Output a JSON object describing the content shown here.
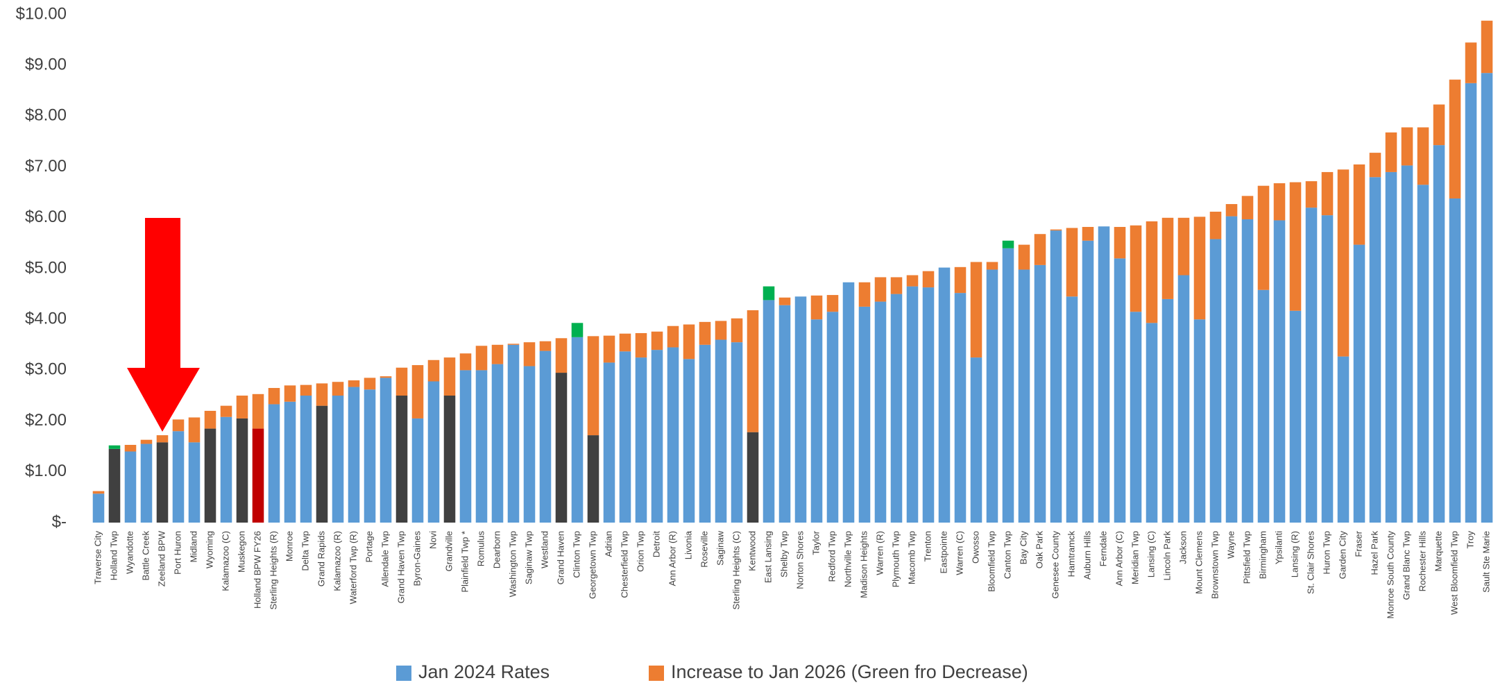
{
  "chart_data": {
    "type": "stacked_bar",
    "categories": [
      "Traverse City",
      "Holland Twp",
      "Wyandotte",
      "Battle Creek",
      "Zeeland BPW",
      "Port Huron",
      "Midland",
      "Wyoming",
      "Kalamazoo (C)",
      "Muskegon",
      "Holland BPW FY26",
      "Sterling Heights (R)",
      "Monroe",
      "Delta Twp",
      "Grand Rapids",
      "Kalamazoo (R)",
      "Waterford Twp (R)",
      "Portage",
      "Allendale Twp",
      "Grand Haven Twp",
      "Byron-Gaines",
      "Novi",
      "Grandville",
      "Plainfield Twp *",
      "Romulus",
      "Dearborn",
      "Washington Twp",
      "Saginaw Twp",
      "Westland",
      "Grand Haven",
      "Clinton Twp",
      "Georgetown Twp",
      "Adrian",
      "Chesterfield Twp",
      "Orion Twp",
      "Detroit",
      "Ann Arbor (R)",
      "Livonia",
      "Roseville",
      "Saginaw",
      "Sterling Heights (C)",
      "Kentwood",
      "East Lansing",
      "Shelby Twp",
      "Norton Shores",
      "Taylor",
      "Redford Twp",
      "Northville Twp",
      "Madison Heights",
      "Warren (R)",
      "Plymouth Twp",
      "Macomb Twp",
      "Trenton",
      "Eastpointe",
      "Warren (C)",
      "Owosso",
      "Bloomfield Twp",
      "Canton Twp",
      "Bay City",
      "Oak Park",
      "Genesee County",
      "Hamtramck",
      "Auburn Hills",
      "Ferndale",
      "Ann Arbor (C)",
      "Meridian Twp",
      "Lansing (C)",
      "Lincoln Park",
      "Jackson",
      "Mount Clemens",
      "Brownstown Twp",
      "Wayne",
      "Pittsfield Twp",
      "Birmingham",
      "Ypsilanti",
      "Lansing (R)",
      "St. Clair Shores",
      "Huron Twp",
      "Garden City",
      "Fraser",
      "Hazel Park",
      "Monroe South County",
      "Grand Blanc Twp",
      "Rochester Hills",
      "Marquette",
      "West Bloomfield Twp",
      "Troy",
      "Sault Ste Marie"
    ],
    "series": [
      {
        "name": "Jan 2024 Rates",
        "color": "#5b9bd5",
        "values": [
          0.57,
          1.45,
          1.4,
          1.55,
          1.58,
          1.8,
          1.58,
          1.85,
          2.08,
          2.05,
          1.85,
          2.33,
          2.38,
          2.5,
          2.3,
          2.5,
          2.67,
          2.62,
          2.85,
          2.5,
          2.05,
          2.78,
          2.5,
          3.0,
          3.0,
          3.12,
          3.5,
          3.08,
          3.38,
          2.95,
          3.65,
          1.72,
          3.15,
          3.37,
          3.25,
          3.4,
          3.45,
          3.22,
          3.5,
          3.6,
          3.55,
          1.78,
          4.38,
          4.28,
          4.45,
          4.0,
          4.15,
          4.73,
          4.25,
          4.35,
          4.5,
          4.65,
          4.63,
          5.02,
          4.52,
          3.25,
          4.98,
          5.4,
          4.98,
          5.07,
          5.75,
          4.45,
          5.55,
          5.83,
          5.2,
          4.15,
          3.93,
          4.4,
          4.87,
          4.0,
          5.58,
          6.03,
          5.97,
          4.58,
          5.95,
          4.17,
          6.2,
          6.05,
          3.27,
          5.47,
          6.8,
          6.9,
          7.03,
          6.65,
          7.43,
          6.38,
          8.65,
          8.85
        ],
        "colors": [
          "#5b9bd5",
          "#404040",
          "#5b9bd5",
          "#5b9bd5",
          "#404040",
          "#5b9bd5",
          "#5b9bd5",
          "#404040",
          "#5b9bd5",
          "#404040",
          "#c00000",
          "#5b9bd5",
          "#5b9bd5",
          "#5b9bd5",
          "#404040",
          "#5b9bd5",
          "#5b9bd5",
          "#5b9bd5",
          "#5b9bd5",
          "#404040",
          "#5b9bd5",
          "#5b9bd5",
          "#404040",
          "#5b9bd5",
          "#5b9bd5",
          "#5b9bd5",
          "#5b9bd5",
          "#5b9bd5",
          "#5b9bd5",
          "#404040",
          "#5b9bd5",
          "#404040",
          "#5b9bd5",
          "#5b9bd5",
          "#5b9bd5",
          "#5b9bd5",
          "#5b9bd5",
          "#5b9bd5",
          "#5b9bd5",
          "#5b9bd5",
          "#5b9bd5",
          "#404040",
          "#5b9bd5",
          "#5b9bd5",
          "#5b9bd5",
          "#5b9bd5",
          "#5b9bd5",
          "#5b9bd5",
          "#5b9bd5",
          "#5b9bd5",
          "#5b9bd5",
          "#5b9bd5",
          "#5b9bd5",
          "#5b9bd5",
          "#5b9bd5",
          "#5b9bd5",
          "#5b9bd5",
          "#5b9bd5",
          "#5b9bd5",
          "#5b9bd5",
          "#5b9bd5",
          "#5b9bd5",
          "#5b9bd5",
          "#5b9bd5",
          "#5b9bd5",
          "#5b9bd5",
          "#5b9bd5",
          "#5b9bd5",
          "#5b9bd5",
          "#5b9bd5",
          "#5b9bd5",
          "#5b9bd5",
          "#5b9bd5",
          "#5b9bd5",
          "#5b9bd5",
          "#5b9bd5",
          "#5b9bd5",
          "#5b9bd5",
          "#5b9bd5",
          "#5b9bd5",
          "#5b9bd5",
          "#5b9bd5",
          "#5b9bd5",
          "#5b9bd5",
          "#5b9bd5",
          "#5b9bd5",
          "#5b9bd5",
          "#5b9bd5"
        ]
      },
      {
        "name": "Increase to Jan 2026 (Green fro Decrease)",
        "color": "#ed7d31",
        "values": [
          0.05,
          0.07,
          0.13,
          0.08,
          0.14,
          0.23,
          0.49,
          0.35,
          0.22,
          0.45,
          0.68,
          0.32,
          0.32,
          0.21,
          0.44,
          0.27,
          0.13,
          0.23,
          0.03,
          0.55,
          1.05,
          0.42,
          0.75,
          0.33,
          0.48,
          0.38,
          0.02,
          0.47,
          0.19,
          0.68,
          0.28,
          1.95,
          0.53,
          0.35,
          0.48,
          0.36,
          0.42,
          0.68,
          0.45,
          0.37,
          0.47,
          2.4,
          0.27,
          0.15,
          0,
          0.47,
          0.33,
          0,
          0.48,
          0.48,
          0.33,
          0.22,
          0.32,
          0,
          0.51,
          1.88,
          0.15,
          0.15,
          0.49,
          0.61,
          0.02,
          1.35,
          0.27,
          0,
          0.62,
          1.7,
          2.0,
          1.6,
          1.13,
          2.02,
          0.54,
          0.24,
          0.46,
          2.05,
          0.73,
          2.53,
          0.52,
          0.85,
          3.68,
          1.58,
          0.48,
          0.78,
          0.75,
          1.13,
          0.8,
          2.34,
          0.8,
          1.03
        ],
        "colors": [
          "#ed7d31",
          "#00b050",
          "#ed7d31",
          "#ed7d31",
          "#ed7d31",
          "#ed7d31",
          "#ed7d31",
          "#ed7d31",
          "#ed7d31",
          "#ed7d31",
          "#ed7d31",
          "#ed7d31",
          "#ed7d31",
          "#ed7d31",
          "#ed7d31",
          "#ed7d31",
          "#ed7d31",
          "#ed7d31",
          "#ed7d31",
          "#ed7d31",
          "#ed7d31",
          "#ed7d31",
          "#ed7d31",
          "#ed7d31",
          "#ed7d31",
          "#ed7d31",
          "#ed7d31",
          "#ed7d31",
          "#ed7d31",
          "#ed7d31",
          "#00b050",
          "#ed7d31",
          "#ed7d31",
          "#ed7d31",
          "#ed7d31",
          "#ed7d31",
          "#ed7d31",
          "#ed7d31",
          "#ed7d31",
          "#ed7d31",
          "#ed7d31",
          "#ed7d31",
          "#00b050",
          "#ed7d31",
          "#ed7d31",
          "#ed7d31",
          "#ed7d31",
          "#ed7d31",
          "#ed7d31",
          "#ed7d31",
          "#ed7d31",
          "#ed7d31",
          "#ed7d31",
          "#ed7d31",
          "#ed7d31",
          "#ed7d31",
          "#ed7d31",
          "#00b050",
          "#ed7d31",
          "#ed7d31",
          "#ed7d31",
          "#ed7d31",
          "#ed7d31",
          "#ed7d31",
          "#ed7d31",
          "#ed7d31",
          "#ed7d31",
          "#ed7d31",
          "#ed7d31",
          "#ed7d31",
          "#ed7d31",
          "#ed7d31",
          "#ed7d31",
          "#ed7d31",
          "#ed7d31",
          "#ed7d31",
          "#ed7d31",
          "#ed7d31",
          "#ed7d31",
          "#ed7d31",
          "#ed7d31",
          "#ed7d31",
          "#ed7d31",
          "#ed7d31",
          "#ed7d31",
          "#ed7d31",
          "#ed7d31",
          "#ed7d31"
        ]
      }
    ],
    "ylim": [
      0,
      10
    ],
    "yticks": [
      {
        "value": 0,
        "label": "$-"
      },
      {
        "value": 1,
        "label": "$1.00"
      },
      {
        "value": 2,
        "label": "$2.00"
      },
      {
        "value": 3,
        "label": "$3.00"
      },
      {
        "value": 4,
        "label": "$4.00"
      },
      {
        "value": 5,
        "label": "$5.00"
      },
      {
        "value": 6,
        "label": "$6.00"
      },
      {
        "value": 7,
        "label": "$7.00"
      },
      {
        "value": 8,
        "label": "$8.00"
      },
      {
        "value": 9,
        "label": "$9.00"
      },
      {
        "value": 10,
        "label": "$10.00"
      }
    ],
    "grid": false,
    "legend": "bottom"
  }
}
